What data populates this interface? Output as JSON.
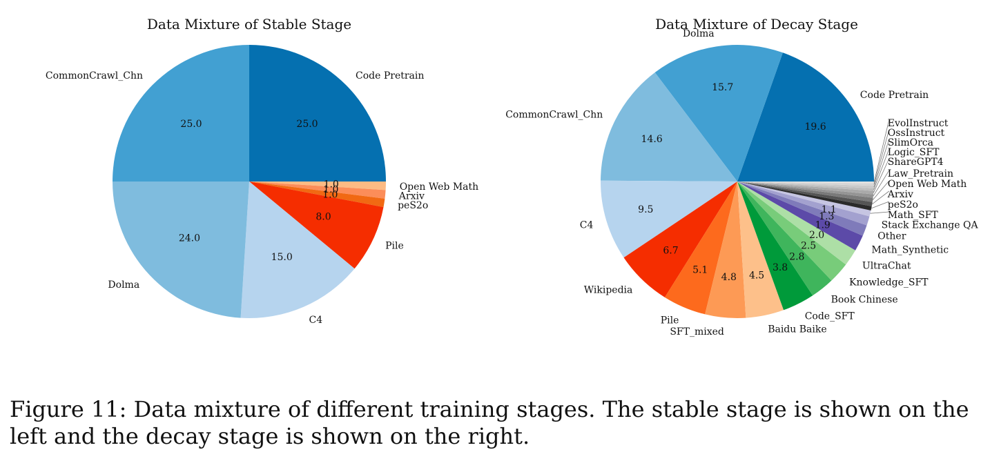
{
  "chart_data": [
    {
      "type": "pie",
      "title": "Data Mixture of Stable Stage",
      "start_angle_deg": 90,
      "direction": "clockwise",
      "slices": [
        {
          "label": "Code Pretrain",
          "value": 25.0,
          "value_label": "25.0",
          "color": "#0570b0"
        },
        {
          "label": "Open Web Math",
          "value": 1.0,
          "value_label": "1.0",
          "color": "#fdbb84"
        },
        {
          "label": "Arxiv",
          "value": 1.0,
          "value_label": "1.0",
          "color": "#fc8d59"
        },
        {
          "label": "peS2o",
          "value": 1.0,
          "value_label": "1.0",
          "color": "#f16913"
        },
        {
          "label": "Pile",
          "value": 8.0,
          "value_label": "8.0",
          "color": "#f52d00"
        },
        {
          "label": "C4",
          "value": 15.0,
          "value_label": "15.0",
          "color": "#b6d4ee"
        },
        {
          "label": "Dolma",
          "value": 24.0,
          "value_label": "24.0",
          "color": "#7fbcde"
        },
        {
          "label": "CommonCrawl_Chn",
          "value": 25.0,
          "value_label": "25.0",
          "color": "#42a0d2"
        }
      ]
    },
    {
      "type": "pie",
      "title": "Data Mixture of Decay Stage",
      "start_angle_deg": 0,
      "direction": "counterclockwise",
      "slices": [
        {
          "label": "Code Pretrain",
          "value": 19.6,
          "value_label": "19.6",
          "color": "#0570b0"
        },
        {
          "label": "Dolma",
          "value": 15.7,
          "value_label": "15.7",
          "color": "#42a0d2"
        },
        {
          "label": "CommonCrawl_Chn",
          "value": 14.6,
          "value_label": "14.6",
          "color": "#7fbcde"
        },
        {
          "label": "C4",
          "value": 9.5,
          "value_label": "9.5",
          "color": "#b6d4ee"
        },
        {
          "label": "Wikipedia",
          "value": 6.7,
          "value_label": "6.7",
          "color": "#f52d00"
        },
        {
          "label": "Pile",
          "value": 5.1,
          "value_label": "5.1",
          "color": "#fd6a1d"
        },
        {
          "label": "SFT_mixed",
          "value": 4.8,
          "value_label": "4.8",
          "color": "#fd9a55"
        },
        {
          "label": "Baidu Baike",
          "value": 4.5,
          "value_label": "4.5",
          "color": "#fdc08a"
        },
        {
          "label": "Code_SFT",
          "value": 3.8,
          "value_label": "3.8",
          "color": "#009a3a"
        },
        {
          "label": "Book Chinese",
          "value": 2.8,
          "value_label": "2.8",
          "color": "#3fb55c"
        },
        {
          "label": "Knowledge_SFT",
          "value": 2.5,
          "value_label": "2.5",
          "color": "#78cc7a"
        },
        {
          "label": "UltraChat",
          "value": 2.0,
          "value_label": "2.0",
          "color": "#addfa6"
        },
        {
          "label": "Math_Synthetic",
          "value": 1.9,
          "value_label": "1.9",
          "color": "#5c4aa8"
        },
        {
          "label": "Other",
          "value": 1.3,
          "value_label": "1.3",
          "color": "#7f7bba"
        },
        {
          "label": "Stack Exchange QA",
          "value": 1.1,
          "value_label": "1.1",
          "color": "#a3a1cf"
        },
        {
          "label": "Math_SFT",
          "value": 0.7,
          "value_label": "",
          "color": "#c6c5e2"
        },
        {
          "label": "peS2o",
          "value": 0.5,
          "value_label": "",
          "color": "#2b2b2b"
        },
        {
          "label": "Arxiv",
          "value": 0.5,
          "value_label": "",
          "color": "#555555"
        },
        {
          "label": "Open Web Math",
          "value": 0.5,
          "value_label": "",
          "color": "#7a7a7a"
        },
        {
          "label": "Law_Pretrain",
          "value": 0.4,
          "value_label": "",
          "color": "#959595"
        },
        {
          "label": "ShareGPT4",
          "value": 0.4,
          "value_label": "",
          "color": "#aaaaaa"
        },
        {
          "label": "Logic_SFT",
          "value": 0.3,
          "value_label": "",
          "color": "#bdbdbd"
        },
        {
          "label": "SlimOrca",
          "value": 0.3,
          "value_label": "",
          "color": "#cacaca"
        },
        {
          "label": "OssInstruct",
          "value": 0.3,
          "value_label": "",
          "color": "#d6d6d6"
        },
        {
          "label": "EvolInstruct",
          "value": 0.2,
          "value_label": "",
          "color": "#e2e2e2"
        }
      ]
    }
  ],
  "caption": "Figure 11: Data mixture of different training stages. The stable stage is shown on the left and the decay stage is shown on the right."
}
